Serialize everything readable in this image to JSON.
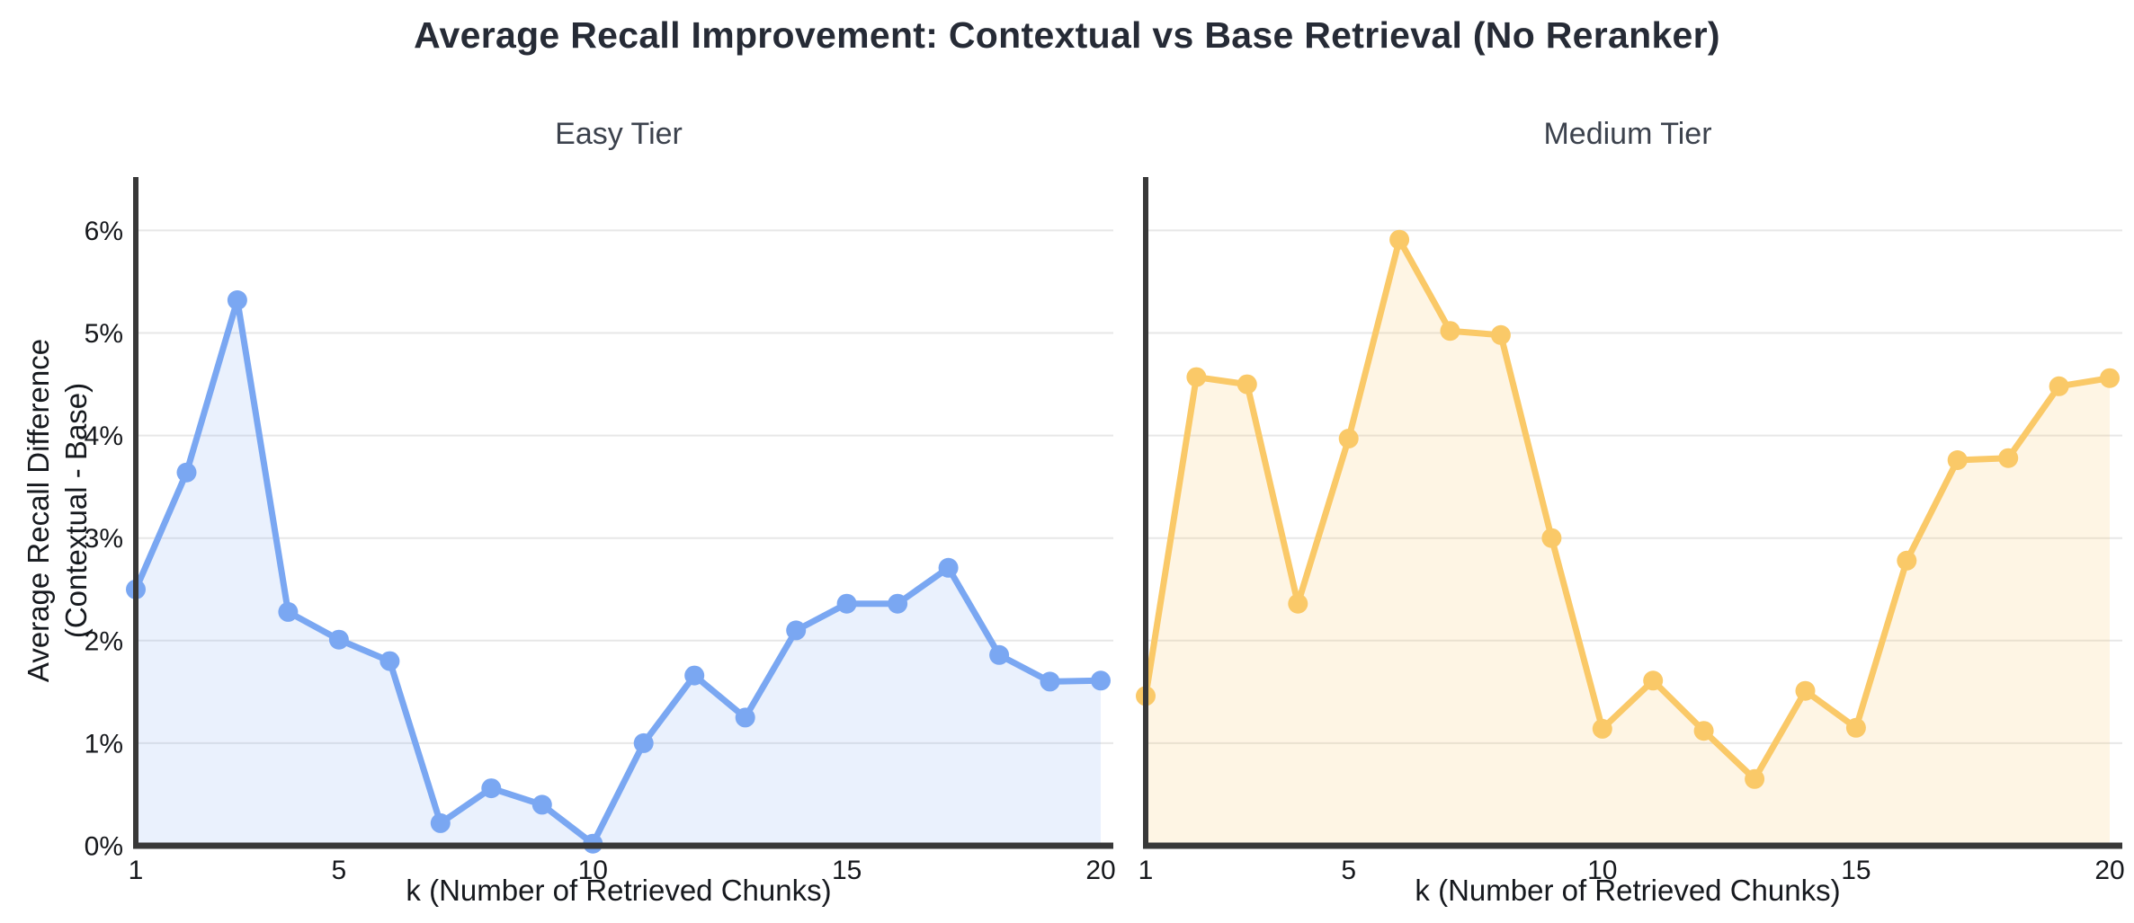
{
  "title": "Average Recall Improvement: Contextual vs Base Retrieval (No Reranker)",
  "colors": {
    "easy_line": "#7AA7F2",
    "easy_fill": "rgba(122,167,242,0.16)",
    "medium_line": "#FAC968",
    "medium_fill": "rgba(250,201,105,0.18)",
    "gridline": "#e7e7e7",
    "axis_spine": "#383838",
    "tick_text": "#16181c",
    "title_text": "#262b36"
  },
  "chart_data": [
    {
      "type": "area",
      "title": "Easy Tier",
      "series_name": "Easy Tier",
      "xlabel": "k (Number of Retrieved Chunks)",
      "ylabel_line1": "Average Recall Difference",
      "ylabel_line2": "(Contextual - Base)",
      "x": [
        1,
        2,
        3,
        4,
        5,
        6,
        7,
        8,
        9,
        10,
        11,
        12,
        13,
        14,
        15,
        16,
        17,
        18,
        19,
        20
      ],
      "values": [
        2.5,
        3.64,
        5.32,
        2.28,
        2.01,
        1.8,
        0.22,
        0.56,
        0.4,
        0.02,
        1.0,
        1.66,
        1.25,
        2.1,
        2.36,
        2.36,
        2.71,
        1.86,
        1.6,
        1.61
      ],
      "x_tick_labels": [
        "1",
        "5",
        "10",
        "15",
        "20"
      ],
      "x_tick_values": [
        1,
        5,
        10,
        15,
        20
      ],
      "y_tick_labels": [
        "0%",
        "1%",
        "2%",
        "3%",
        "4%",
        "5%",
        "6%"
      ],
      "y_tick_values": [
        0,
        1,
        2,
        3,
        4,
        5,
        6
      ],
      "y_ticks_visible": true,
      "xlim": [
        1,
        20
      ],
      "ylim": [
        0,
        6.5
      ],
      "grid": true,
      "legend": "none",
      "line_color": "#7AA7F2",
      "fill_color": "rgba(122,167,242,0.16)"
    },
    {
      "type": "area",
      "title": "Medium Tier",
      "series_name": "Medium Tier",
      "xlabel": "k (Number of Retrieved Chunks)",
      "x": [
        1,
        2,
        3,
        4,
        5,
        6,
        7,
        8,
        9,
        10,
        11,
        12,
        13,
        14,
        15,
        16,
        17,
        18,
        19,
        20
      ],
      "values": [
        1.46,
        4.57,
        4.5,
        2.36,
        3.97,
        5.91,
        5.02,
        4.98,
        3.0,
        1.14,
        1.61,
        1.12,
        0.65,
        1.51,
        1.15,
        2.78,
        3.76,
        3.78,
        4.48,
        4.56
      ],
      "x_tick_labels": [
        "1",
        "5",
        "10",
        "15",
        "20"
      ],
      "x_tick_values": [
        1,
        5,
        10,
        15,
        20
      ],
      "y_tick_labels": [],
      "y_tick_values": [],
      "y_ticks_visible": false,
      "xlim": [
        1,
        20
      ],
      "ylim": [
        0,
        6.5
      ],
      "grid": true,
      "legend": "none",
      "line_color": "#FAC968",
      "fill_color": "rgba(250,201,105,0.18)"
    }
  ]
}
